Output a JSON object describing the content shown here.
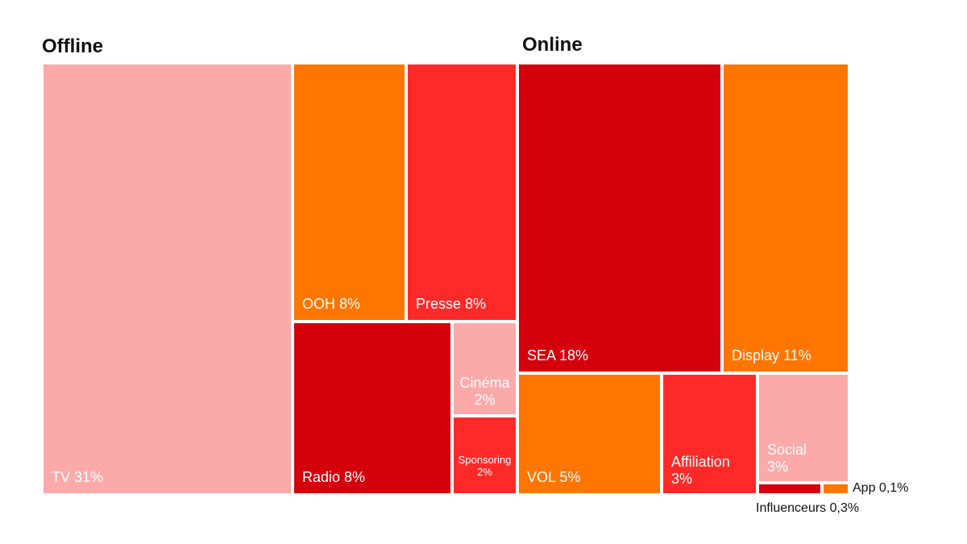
{
  "colors": {
    "pink": "#fca9a9",
    "orange": "#fe7500",
    "red": "#fe2a29",
    "darkred": "#d4000c",
    "text_dark": "#111111",
    "text_light": "#ffffff"
  },
  "chart_data": {
    "type": "treemap",
    "title": "",
    "groups": [
      {
        "name": "Offline",
        "items": [
          {
            "name": "TV",
            "value": 31,
            "value_label": "31%",
            "color": "#fca9a9"
          },
          {
            "name": "OOH",
            "value": 8,
            "value_label": "8%",
            "color": "#fe7500"
          },
          {
            "name": "Presse",
            "value": 8,
            "value_label": "8%",
            "color": "#fe2a29"
          },
          {
            "name": "Radio",
            "value": 8,
            "value_label": "8%",
            "color": "#d4000c"
          },
          {
            "name": "Cinéma",
            "value": 2,
            "value_label": "2%",
            "color": "#fca9a9"
          },
          {
            "name": "Sponsoring",
            "value": 2,
            "value_label": "2%",
            "color": "#fe2a29"
          }
        ]
      },
      {
        "name": "Online",
        "items": [
          {
            "name": "SEA",
            "value": 18,
            "value_label": "18%",
            "color": "#d4000c"
          },
          {
            "name": "Display",
            "value": 11,
            "value_label": "11%",
            "color": "#fe7500"
          },
          {
            "name": "VOL",
            "value": 5,
            "value_label": "5%",
            "color": "#fe7500"
          },
          {
            "name": "Affiliation",
            "value": 3,
            "value_label": "3%",
            "color": "#fe2a29"
          },
          {
            "name": "Social",
            "value": 3,
            "value_label": "3%",
            "color": "#fca9a9"
          },
          {
            "name": "Influenceurs",
            "value": 0.3,
            "value_label": "0,3%",
            "color": "#d4000c"
          },
          {
            "name": "App",
            "value": 0.1,
            "value_label": "0,1%",
            "color": "#fe7500"
          }
        ]
      }
    ]
  }
}
